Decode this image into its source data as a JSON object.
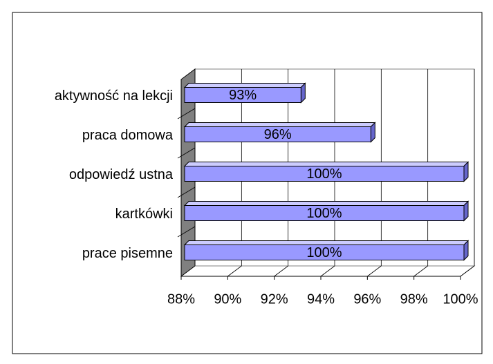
{
  "chart_data": {
    "type": "bar3d_horizontal",
    "categories": [
      "aktywność na lekcji",
      "praca domowa",
      "odpowiedź ustna",
      "kartkówki",
      "prace pisemne"
    ],
    "values": [
      93,
      96,
      100,
      100,
      100
    ],
    "value_labels": [
      "93%",
      "96%",
      "100%",
      "100%",
      "100%"
    ],
    "color": "#9999ff",
    "xlim": [
      88,
      100
    ],
    "xticks": [
      {
        "value": 88,
        "label": "88%"
      },
      {
        "value": 90,
        "label": "90%"
      },
      {
        "value": 92,
        "label": "92%"
      },
      {
        "value": 94,
        "label": "94%"
      },
      {
        "value": 96,
        "label": "96%"
      },
      {
        "value": 98,
        "label": "98%"
      },
      {
        "value": 100,
        "label": "100%"
      }
    ],
    "grid": true
  }
}
